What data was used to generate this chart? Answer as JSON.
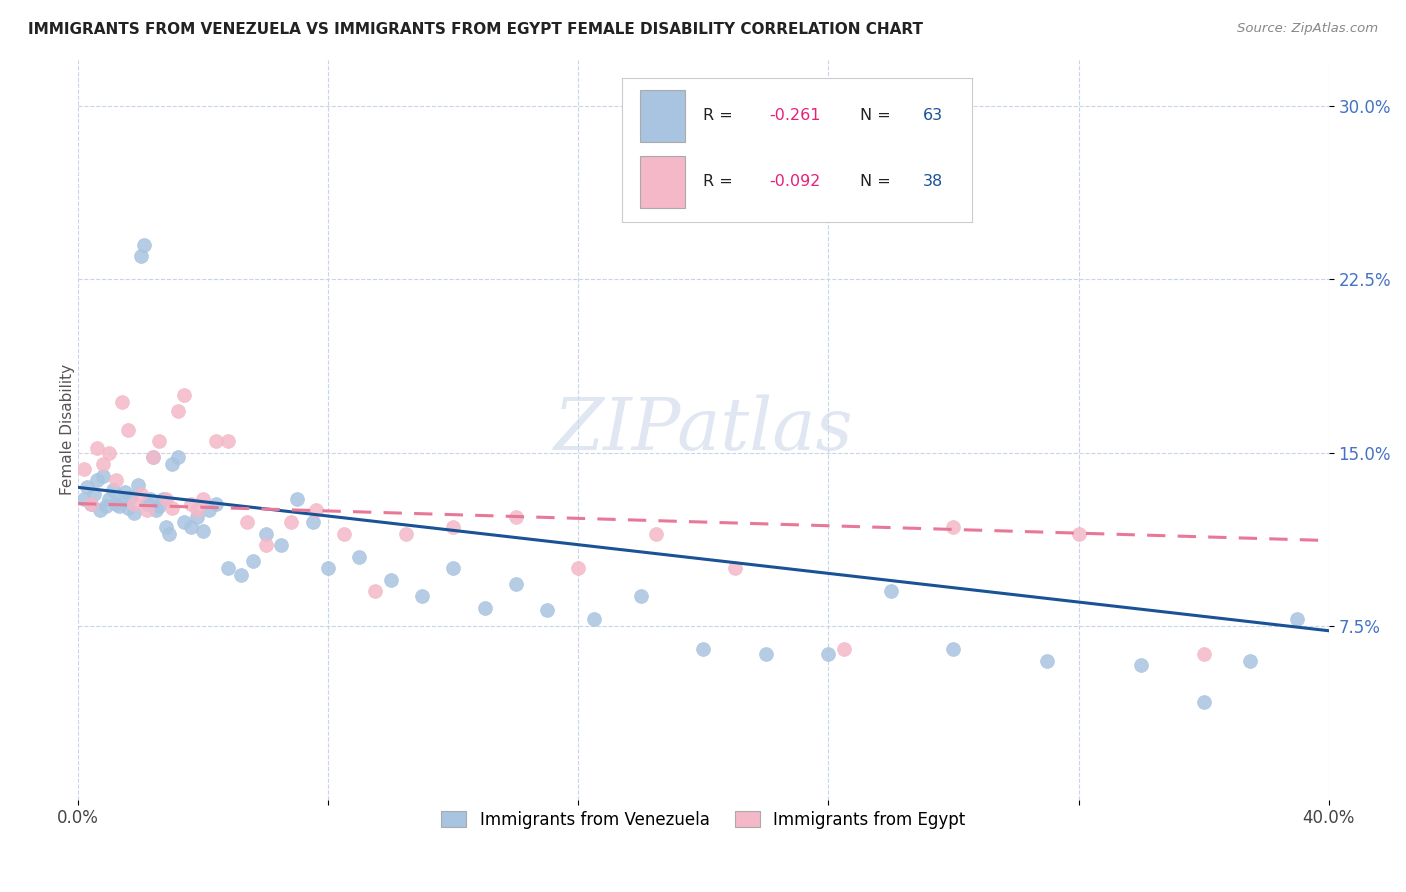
{
  "title": "IMMIGRANTS FROM VENEZUELA VS IMMIGRANTS FROM EGYPT FEMALE DISABILITY CORRELATION CHART",
  "source": "Source: ZipAtlas.com",
  "ylabel": "Female Disability",
  "xlim": [
    0.0,
    0.4
  ],
  "ylim": [
    0.0,
    0.32
  ],
  "yticks": [
    0.075,
    0.15,
    0.225,
    0.3
  ],
  "ytick_labels": [
    "7.5%",
    "15.0%",
    "22.5%",
    "30.0%"
  ],
  "venezuela_color": "#a8c4e0",
  "egypt_color": "#f4b8c8",
  "venezuela_R": -0.261,
  "venezuela_N": 63,
  "egypt_R": -0.092,
  "egypt_N": 38,
  "venezuela_line_color": "#1a5296",
  "egypt_line_color": "#e87898",
  "watermark": "ZIPatlas",
  "legend_R_color": "#e8207a",
  "legend_N_color": "#1a5296",
  "venezuela_scatter_x": [
    0.002,
    0.003,
    0.004,
    0.005,
    0.006,
    0.007,
    0.008,
    0.009,
    0.01,
    0.011,
    0.012,
    0.013,
    0.014,
    0.015,
    0.016,
    0.017,
    0.018,
    0.019,
    0.02,
    0.021,
    0.022,
    0.023,
    0.024,
    0.025,
    0.026,
    0.027,
    0.028,
    0.029,
    0.03,
    0.032,
    0.034,
    0.036,
    0.038,
    0.04,
    0.042,
    0.044,
    0.048,
    0.052,
    0.056,
    0.06,
    0.065,
    0.07,
    0.075,
    0.08,
    0.09,
    0.1,
    0.11,
    0.12,
    0.13,
    0.14,
    0.15,
    0.165,
    0.18,
    0.2,
    0.22,
    0.24,
    0.26,
    0.28,
    0.31,
    0.34,
    0.36,
    0.375,
    0.39
  ],
  "venezuela_scatter_y": [
    0.13,
    0.135,
    0.128,
    0.132,
    0.138,
    0.125,
    0.14,
    0.127,
    0.13,
    0.134,
    0.128,
    0.127,
    0.129,
    0.133,
    0.126,
    0.131,
    0.124,
    0.136,
    0.235,
    0.24,
    0.128,
    0.13,
    0.148,
    0.125,
    0.127,
    0.13,
    0.118,
    0.115,
    0.145,
    0.148,
    0.12,
    0.118,
    0.122,
    0.116,
    0.125,
    0.128,
    0.1,
    0.097,
    0.103,
    0.115,
    0.11,
    0.13,
    0.12,
    0.1,
    0.105,
    0.095,
    0.088,
    0.1,
    0.083,
    0.093,
    0.082,
    0.078,
    0.088,
    0.065,
    0.063,
    0.063,
    0.09,
    0.065,
    0.06,
    0.058,
    0.042,
    0.06,
    0.078
  ],
  "egypt_scatter_x": [
    0.002,
    0.004,
    0.006,
    0.008,
    0.01,
    0.012,
    0.014,
    0.016,
    0.018,
    0.02,
    0.022,
    0.024,
    0.026,
    0.028,
    0.03,
    0.032,
    0.034,
    0.036,
    0.038,
    0.04,
    0.044,
    0.048,
    0.054,
    0.06,
    0.068,
    0.076,
    0.085,
    0.095,
    0.105,
    0.12,
    0.14,
    0.16,
    0.185,
    0.21,
    0.245,
    0.28,
    0.32,
    0.36
  ],
  "egypt_scatter_y": [
    0.143,
    0.128,
    0.152,
    0.145,
    0.15,
    0.138,
    0.172,
    0.16,
    0.128,
    0.132,
    0.125,
    0.148,
    0.155,
    0.13,
    0.126,
    0.168,
    0.175,
    0.128,
    0.125,
    0.13,
    0.155,
    0.155,
    0.12,
    0.11,
    0.12,
    0.125,
    0.115,
    0.09,
    0.115,
    0.118,
    0.122,
    0.1,
    0.115,
    0.1,
    0.065,
    0.118,
    0.115,
    0.063
  ],
  "ven_intercept": 0.135,
  "ven_slope": -0.155,
  "egy_intercept": 0.128,
  "egy_slope": -0.04
}
